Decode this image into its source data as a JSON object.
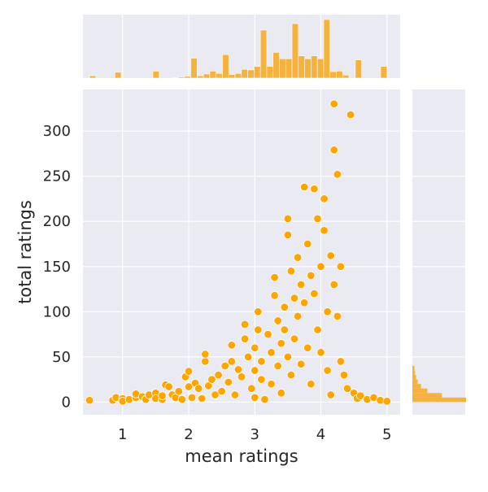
{
  "chart_data": {
    "type": "scatter",
    "title": "",
    "xlabel": "mean ratings",
    "ylabel": "total ratings",
    "xlim": [
      0.4,
      5.2
    ],
    "ylim": [
      -14,
      346
    ],
    "x_ticks": [
      "1",
      "2",
      "3",
      "4",
      "5"
    ],
    "y_ticks": [
      "0",
      "50",
      "100",
      "150",
      "200",
      "250",
      "300"
    ],
    "grid": true,
    "style": "seaborn darkgrid joint plot with marginal histograms",
    "colors": {
      "points": "#ffa500",
      "point_edge": "#ffffff",
      "hist_fill": "#f6b23e",
      "hist_edge": "#ffffff",
      "panel_bg": "#eaeaf2",
      "grid": "#ffffff"
    },
    "series": [
      {
        "points": [
          [
            0.5,
            2
          ],
          [
            0.85,
            2
          ],
          [
            0.9,
            5
          ],
          [
            1.0,
            4
          ],
          [
            1.0,
            1
          ],
          [
            1.1,
            3
          ],
          [
            1.2,
            5
          ],
          [
            1.2,
            9
          ],
          [
            1.3,
            6
          ],
          [
            1.35,
            3
          ],
          [
            1.4,
            8
          ],
          [
            1.5,
            10
          ],
          [
            1.5,
            4
          ],
          [
            1.6,
            3
          ],
          [
            1.6,
            7
          ],
          [
            1.65,
            19
          ],
          [
            1.7,
            17
          ],
          [
            1.75,
            8
          ],
          [
            1.8,
            5
          ],
          [
            1.85,
            12
          ],
          [
            1.9,
            3
          ],
          [
            1.95,
            28
          ],
          [
            2.0,
            17
          ],
          [
            2.0,
            34
          ],
          [
            2.05,
            5
          ],
          [
            2.1,
            21
          ],
          [
            2.15,
            15
          ],
          [
            2.2,
            4
          ],
          [
            2.25,
            45
          ],
          [
            2.25,
            53
          ],
          [
            2.3,
            18
          ],
          [
            2.35,
            25
          ],
          [
            2.4,
            8
          ],
          [
            2.45,
            30
          ],
          [
            2.5,
            12
          ],
          [
            2.55,
            40
          ],
          [
            2.6,
            22
          ],
          [
            2.65,
            63
          ],
          [
            2.65,
            45
          ],
          [
            2.7,
            8
          ],
          [
            2.75,
            36
          ],
          [
            2.8,
            28
          ],
          [
            2.85,
            70
          ],
          [
            2.85,
            86
          ],
          [
            2.9,
            50
          ],
          [
            2.95,
            15
          ],
          [
            3.0,
            60
          ],
          [
            3.0,
            35
          ],
          [
            3.0,
            5
          ],
          [
            3.05,
            80
          ],
          [
            3.05,
            100
          ],
          [
            3.1,
            25
          ],
          [
            3.1,
            45
          ],
          [
            3.15,
            3
          ],
          [
            3.2,
            75
          ],
          [
            3.25,
            55
          ],
          [
            3.25,
            20
          ],
          [
            3.3,
            138
          ],
          [
            3.3,
            118
          ],
          [
            3.35,
            90
          ],
          [
            3.35,
            40
          ],
          [
            3.4,
            65
          ],
          [
            3.4,
            10
          ],
          [
            3.45,
            105
          ],
          [
            3.45,
            80
          ],
          [
            3.5,
            203
          ],
          [
            3.5,
            185
          ],
          [
            3.5,
            50
          ],
          [
            3.55,
            145
          ],
          [
            3.55,
            30
          ],
          [
            3.6,
            115
          ],
          [
            3.6,
            70
          ],
          [
            3.65,
            160
          ],
          [
            3.65,
            95
          ],
          [
            3.7,
            130
          ],
          [
            3.7,
            42
          ],
          [
            3.75,
            238
          ],
          [
            3.75,
            110
          ],
          [
            3.8,
            175
          ],
          [
            3.8,
            60
          ],
          [
            3.85,
            140
          ],
          [
            3.85,
            20
          ],
          [
            3.9,
            236
          ],
          [
            3.9,
            120
          ],
          [
            3.95,
            203
          ],
          [
            3.95,
            80
          ],
          [
            4.0,
            150
          ],
          [
            4.0,
            55
          ],
          [
            4.05,
            225
          ],
          [
            4.05,
            190
          ],
          [
            4.1,
            100
          ],
          [
            4.1,
            35
          ],
          [
            4.15,
            162
          ],
          [
            4.15,
            8
          ],
          [
            4.2,
            330
          ],
          [
            4.2,
            279
          ],
          [
            4.2,
            130
          ],
          [
            4.25,
            252
          ],
          [
            4.25,
            95
          ],
          [
            4.3,
            150
          ],
          [
            4.3,
            45
          ],
          [
            4.35,
            30
          ],
          [
            4.4,
            15
          ],
          [
            4.45,
            318
          ],
          [
            4.5,
            10
          ],
          [
            4.55,
            4
          ],
          [
            4.6,
            7
          ],
          [
            4.7,
            3
          ],
          [
            4.8,
            5
          ],
          [
            4.9,
            2
          ],
          [
            5.0,
            1
          ]
        ]
      }
    ],
    "marginal_x": {
      "bins": [
        0.5,
        5.0
      ],
      "relative_heights": [
        0.04,
        0.0,
        0.0,
        0.0,
        0.1,
        0.0,
        0.0,
        0.0,
        0.0,
        0.0,
        0.12,
        0.0,
        0.0,
        0.01,
        0.02,
        0.03,
        0.34,
        0.04,
        0.07,
        0.12,
        0.08,
        0.4,
        0.06,
        0.08,
        0.15,
        0.14,
        0.2,
        0.82,
        0.2,
        0.44,
        0.33,
        0.33,
        0.93,
        0.38,
        0.33,
        0.38,
        0.33,
        1.0,
        0.11,
        0.12,
        0.05,
        0.0,
        0.31,
        0.0,
        0.0,
        0.0,
        0.2
      ]
    },
    "marginal_y": {
      "relative_widths": [
        1.0,
        0.55,
        0.28,
        0.16,
        0.1,
        0.07,
        0.05,
        0.04
      ]
    }
  }
}
